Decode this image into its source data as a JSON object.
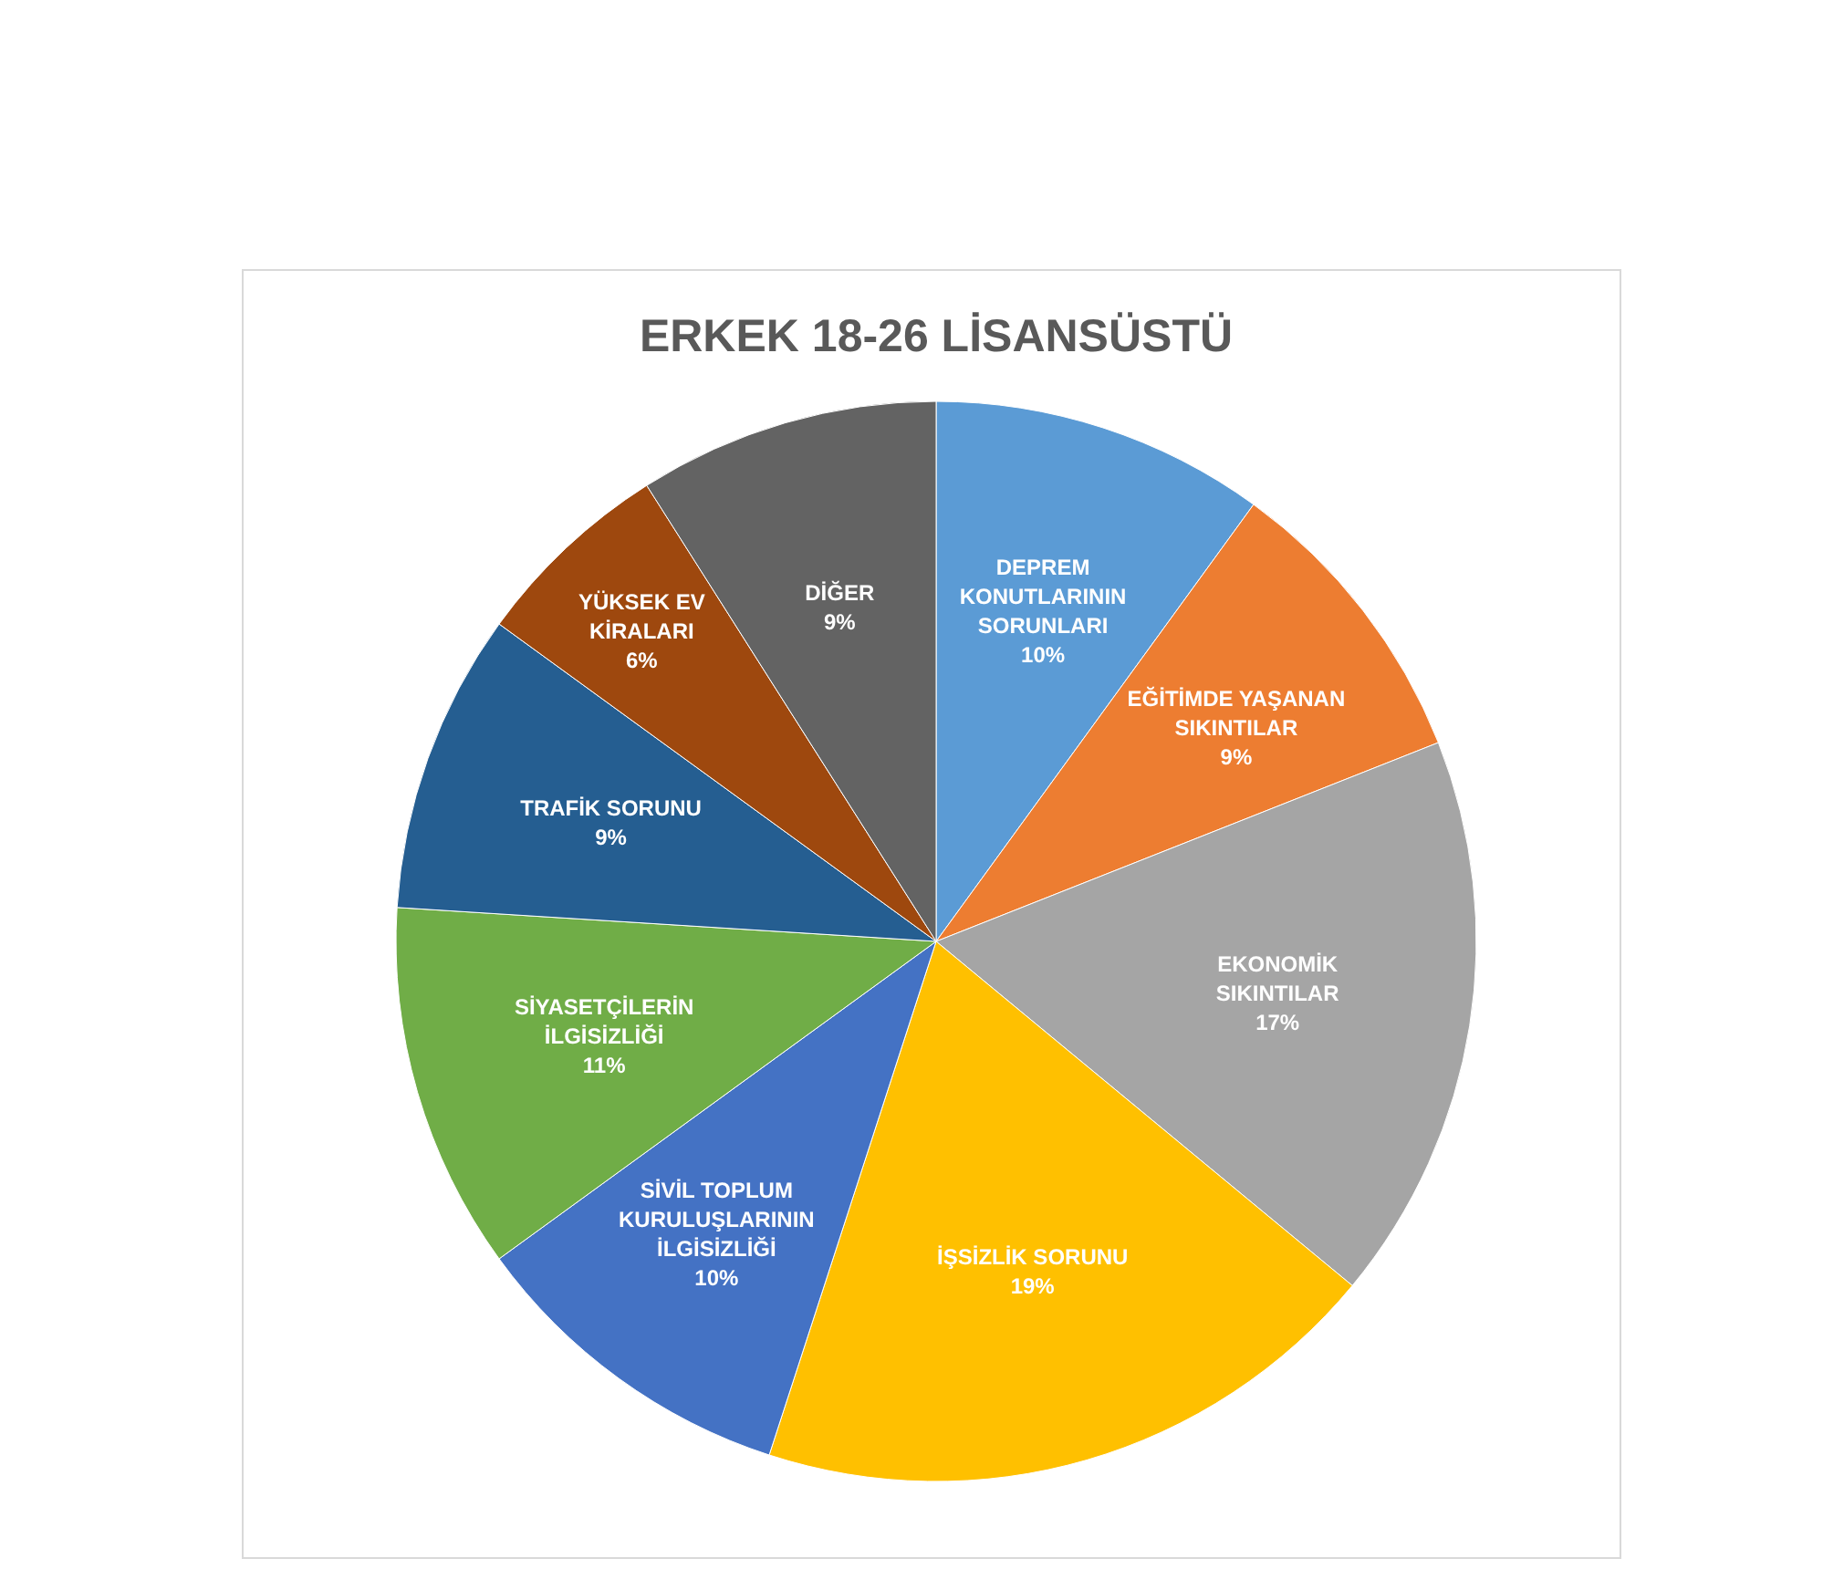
{
  "chart_data": {
    "type": "pie",
    "title": "ERKEK 18-26 LİSANSÜSTÜ",
    "categories": [
      "DEPREM KONUTLARININ SORUNLARI",
      "EĞİTİMDE YAŞANAN SIKINTILAR",
      "EKONOMİK SIKINTILAR",
      "İŞSİZLİK SORUNU",
      "SİVİL TOPLUM KURULUŞLARININ İLGİSİZLİĞİ",
      "SİYASETÇİLERİN İLGİSİZLİĞİ",
      "TRAFİK SORUNU",
      "YÜKSEK EV KİRALARI",
      "DİĞER"
    ],
    "values": [
      10,
      9,
      17,
      19,
      10,
      11,
      9,
      6,
      9
    ],
    "colors": [
      "#5b9bd5",
      "#ed7d31",
      "#a5a5a5",
      "#ffc000",
      "#4472c4",
      "#70ad47",
      "#255e91",
      "#9e480e",
      "#636363"
    ],
    "value_labels": [
      "10%",
      "9%",
      "17%",
      "19%",
      "10%",
      "11%",
      "9%",
      "6%",
      "9%"
    ]
  }
}
